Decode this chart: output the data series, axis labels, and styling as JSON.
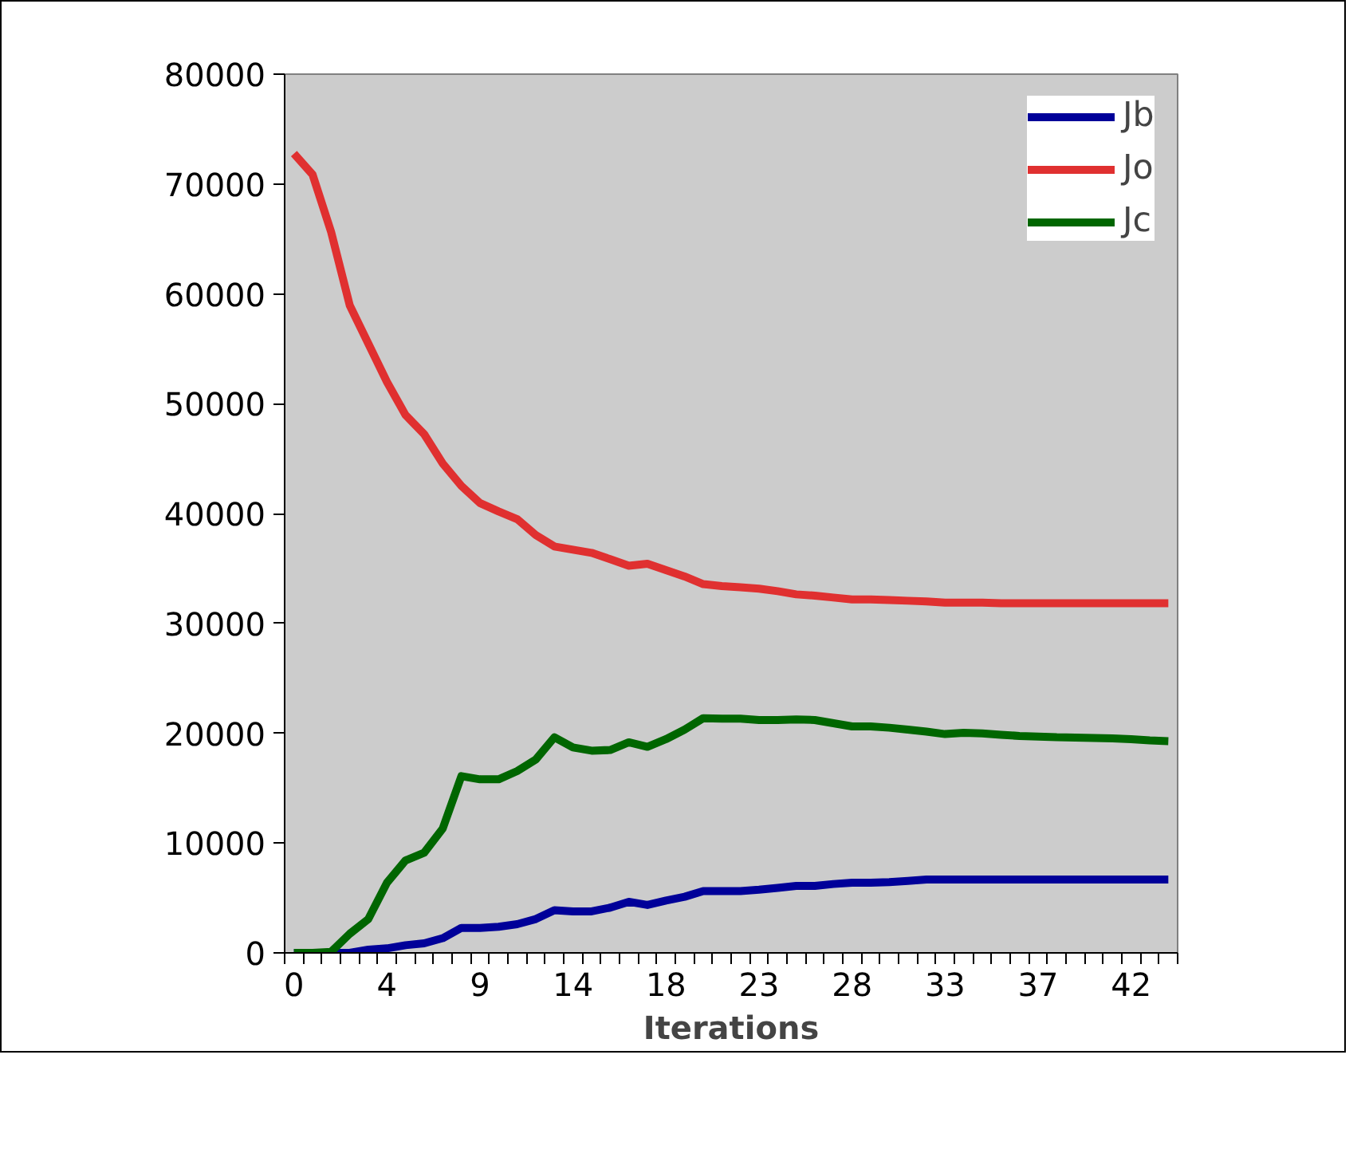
{
  "chart_data": {
    "type": "line",
    "xlabel": "Iterations",
    "categories": [
      "0",
      null,
      null,
      null,
      null,
      "4",
      null,
      null,
      null,
      null,
      "9",
      null,
      null,
      null,
      null,
      "14",
      null,
      null,
      null,
      null,
      "18",
      null,
      null,
      null,
      null,
      "23",
      null,
      null,
      null,
      null,
      "28",
      null,
      null,
      null,
      null,
      "33",
      null,
      null,
      null,
      null,
      "37",
      null,
      null,
      null,
      null,
      "42",
      null,
      null
    ],
    "series": [
      {
        "name": "Jb",
        "color": "#000099",
        "values": [
          0,
          0,
          0,
          0,
          300,
          410,
          700,
          870,
          1340,
          2270,
          2270,
          2380,
          2610,
          3080,
          3890,
          3780,
          3780,
          4120,
          4650,
          4360,
          4760,
          5110,
          5630,
          5630,
          5630,
          5750,
          5920,
          6100,
          6100,
          6270,
          6390,
          6390,
          6450,
          6560,
          6680,
          6680,
          6680,
          6680,
          6680,
          6680,
          6680,
          6680,
          6680,
          6680,
          6680,
          6680,
          6680,
          6680
        ]
      },
      {
        "name": "Jo",
        "color": "#e03030",
        "values": [
          72770,
          70860,
          65630,
          58950,
          55460,
          51980,
          48960,
          47220,
          44550,
          42510,
          40950,
          40190,
          39490,
          38040,
          37000,
          36710,
          36420,
          35840,
          35250,
          35430,
          34850,
          34270,
          33570,
          33400,
          33280,
          33160,
          32930,
          32640,
          32520,
          32350,
          32180,
          32180,
          32120,
          32060,
          32000,
          31890,
          31890,
          31890,
          31830,
          31830,
          31830,
          31830,
          31830,
          31830,
          31830,
          31830,
          31830,
          31830
        ]
      },
      {
        "name": "Jc",
        "color": "#006600",
        "values": [
          0,
          0,
          100,
          1740,
          3080,
          6390,
          8420,
          9120,
          11330,
          16090,
          15800,
          15800,
          16550,
          17600,
          19630,
          18700,
          18410,
          18470,
          19170,
          18760,
          19460,
          20330,
          21370,
          21320,
          21320,
          21200,
          21200,
          21260,
          21200,
          20910,
          20620,
          20620,
          20500,
          20330,
          20150,
          19920,
          20040,
          19980,
          19860,
          19750,
          19700,
          19630,
          19600,
          19570,
          19520,
          19460,
          19340,
          19280
        ]
      }
    ],
    "ylim": [
      0,
      80000
    ],
    "yticks": [
      0,
      10000,
      20000,
      30000,
      40000,
      50000,
      60000,
      70000,
      80000
    ],
    "grid": false,
    "legend": "top right",
    "marker": "none",
    "line_style": "solid"
  }
}
